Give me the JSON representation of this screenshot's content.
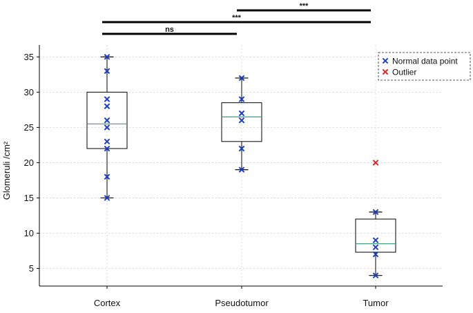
{
  "chart_data": {
    "type": "box",
    "ylabel": "Glomeruli /cm²",
    "xlabel": "",
    "ylim": [
      2.5,
      36.7
    ],
    "yticks": [
      5,
      10,
      15,
      20,
      25,
      30,
      35
    ],
    "grid": true,
    "categories": [
      "Cortex",
      "Pseudotumor",
      "Tumor"
    ],
    "boxes": [
      {
        "category": "Cortex",
        "whisker_low": 15,
        "q1": 22,
        "median": 25.5,
        "q3": 30,
        "whisker_high": 35,
        "points": [
          35,
          33,
          29,
          28,
          26,
          25,
          23,
          22,
          18,
          15
        ],
        "outliers": []
      },
      {
        "category": "Pseudotumor",
        "whisker_low": 19,
        "q1": 23,
        "median": 26.5,
        "q3": 28.5,
        "whisker_high": 32,
        "points": [
          32,
          29,
          27,
          26,
          22,
          19
        ],
        "outliers": []
      },
      {
        "category": "Tumor",
        "whisker_low": 4,
        "q1": 7.3,
        "median": 8.5,
        "q3": 12,
        "whisker_high": 13,
        "points": [
          13,
          9,
          8,
          7,
          4
        ],
        "outliers": [
          20
        ]
      }
    ],
    "significance": [
      {
        "from": "Cortex",
        "to": "Pseudotumor",
        "label": "ns"
      },
      {
        "from": "Cortex",
        "to": "Tumor",
        "label": "***"
      },
      {
        "from": "Pseudotumor",
        "to": "Tumor",
        "label": "***"
      }
    ],
    "legend": {
      "position": "top-right",
      "entries": [
        {
          "label": "Normal data point",
          "color": "#1f3fbf",
          "marker": "x"
        },
        {
          "label": "Outlier",
          "color": "#d62728",
          "marker": "x"
        }
      ]
    },
    "colors": {
      "point": "#1f3fbf",
      "outlier": "#d62728",
      "median": "#3a9e7e",
      "box": "#000000"
    }
  }
}
